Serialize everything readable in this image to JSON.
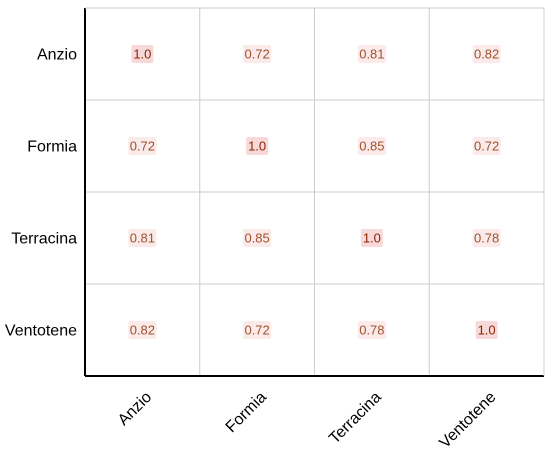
{
  "chart_data": {
    "type": "heatmap",
    "rows": [
      "Anzio",
      "Formia",
      "Terracina",
      "Ventotene"
    ],
    "columns": [
      "Anzio",
      "Formia",
      "Terracina",
      "Ventotene"
    ],
    "values": [
      [
        "1.0",
        "0.72",
        "0.81",
        "0.82"
      ],
      [
        "0.72",
        "1.0",
        "0.85",
        "0.72"
      ],
      [
        "0.81",
        "0.85",
        "1.0",
        "0.78"
      ],
      [
        "0.82",
        "0.72",
        "0.78",
        "1.0"
      ]
    ],
    "title": "",
    "xlabel": "",
    "ylabel": "",
    "grid": true,
    "colors": {
      "text_high": "#8b2500",
      "text_low": "#a0522d",
      "highlight_high": "#f7d9d9",
      "highlight_low": "#fbeaea",
      "grid": "#cccccc",
      "frame": "#000000"
    }
  }
}
